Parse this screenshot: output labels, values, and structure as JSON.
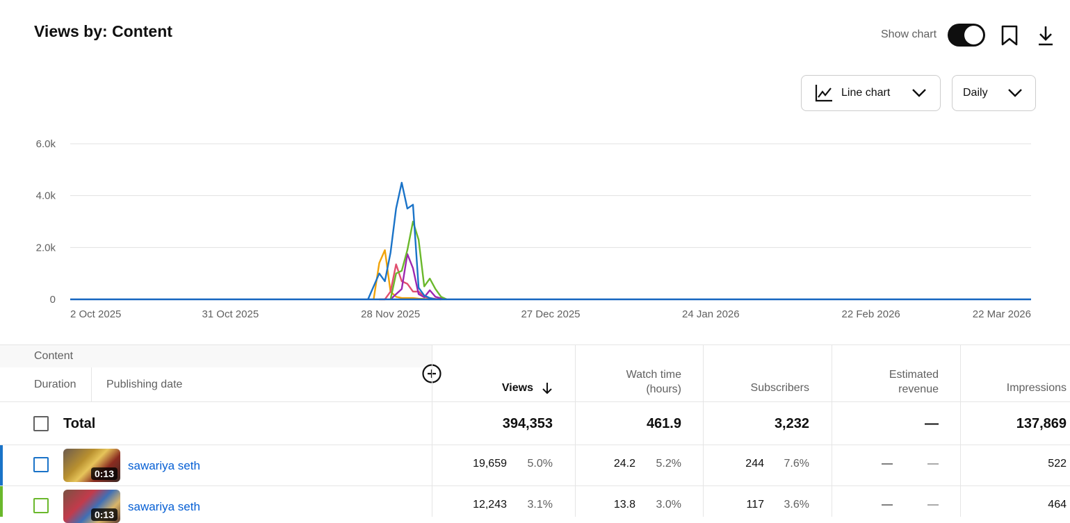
{
  "header": {
    "title": "Views by: Content",
    "show_chart_label": "Show chart",
    "show_chart_on": true
  },
  "controls": {
    "chart_type": "Line chart",
    "interval": "Daily"
  },
  "chart_data": {
    "type": "line",
    "x_ticks": [
      "2 Oct 2025",
      "31 Oct 2025",
      "28 Nov 2025",
      "27 Dec 2025",
      "24 Jan 2026",
      "22 Feb 2026",
      "22 Mar 2026"
    ],
    "y_ticks": [
      "6.0k",
      "4.0k",
      "2.0k",
      "0"
    ],
    "ylim": [
      0,
      6000
    ],
    "x_start": "2025-10-02",
    "x_end": "2026-03-22",
    "grid": true,
    "series": [
      {
        "color": "#f0a30a",
        "x": [
          "2025-11-25",
          "2025-11-26",
          "2025-11-27",
          "2025-11-28",
          "2025-11-29",
          "2025-11-30",
          "2025-12-01",
          "2025-12-02",
          "2025-12-03",
          "2025-12-04",
          "2025-12-05"
        ],
        "y": [
          0,
          1400,
          1900,
          300,
          100,
          50,
          50,
          50,
          30,
          20,
          0
        ]
      },
      {
        "color": "#e04e6e",
        "x": [
          "2025-11-26",
          "2025-11-27",
          "2025-11-28",
          "2025-11-29",
          "2025-11-30",
          "2025-12-01",
          "2025-12-02",
          "2025-12-03",
          "2025-12-04",
          "2025-12-05",
          "2025-12-06",
          "2025-12-07"
        ],
        "y": [
          0,
          0,
          300,
          1350,
          700,
          600,
          300,
          300,
          100,
          50,
          20,
          0
        ]
      },
      {
        "color": "#9c27b0",
        "x": [
          "2025-11-28",
          "2025-11-29",
          "2025-11-30",
          "2025-12-01",
          "2025-12-02",
          "2025-12-03",
          "2025-12-04",
          "2025-12-05",
          "2025-12-06",
          "2025-12-07",
          "2025-12-08"
        ],
        "y": [
          0,
          200,
          400,
          1750,
          1200,
          200,
          80,
          350,
          100,
          40,
          0
        ]
      },
      {
        "color": "#6ab82b",
        "x": [
          "2025-11-28",
          "2025-11-29",
          "2025-11-30",
          "2025-12-01",
          "2025-12-02",
          "2025-12-03",
          "2025-12-04",
          "2025-12-05",
          "2025-12-06",
          "2025-12-07",
          "2025-12-08"
        ],
        "y": [
          0,
          1000,
          1100,
          1900,
          3000,
          2300,
          500,
          800,
          400,
          100,
          0
        ]
      },
      {
        "color": "#1a73c8",
        "x": [
          "2025-11-24",
          "2025-11-25",
          "2025-11-26",
          "2025-11-27",
          "2025-11-28",
          "2025-11-29",
          "2025-11-30",
          "2025-12-01",
          "2025-12-02",
          "2025-12-03",
          "2025-12-04",
          "2025-12-05",
          "2025-12-06"
        ],
        "y": [
          0,
          500,
          1000,
          700,
          1800,
          3500,
          4500,
          3500,
          3650,
          450,
          150,
          50,
          0
        ]
      },
      {
        "color": "#1565c0",
        "x": [
          "2025-10-02",
          "2026-03-22"
        ],
        "y": [
          0,
          0
        ]
      }
    ]
  },
  "table": {
    "header": {
      "content": "Content",
      "duration": "Duration",
      "publishing_date": "Publishing date",
      "views": "Views",
      "watch_time": [
        "Watch time",
        "(hours)"
      ],
      "subscribers": "Subscribers",
      "revenue": [
        "Estimated",
        "revenue"
      ],
      "impressions": "Impressions"
    },
    "total": {
      "label": "Total",
      "views": "394,353",
      "watch_time": "461.9",
      "subscribers": "3,232",
      "revenue": "—",
      "impressions": "137,869"
    },
    "rows": [
      {
        "color": "#1a73c8",
        "duration": "0:13",
        "title": "sawariya seth",
        "views": "19,659",
        "views_pct": "5.0%",
        "watch": "24.2",
        "watch_pct": "5.2%",
        "subs": "244",
        "subs_pct": "7.6%",
        "revenue": "—",
        "revenue_pct": "—",
        "impressions": "522"
      },
      {
        "color": "#6ab82b",
        "duration": "0:13",
        "title": "sawariya seth",
        "views": "12,243",
        "views_pct": "3.1%",
        "watch": "13.8",
        "watch_pct": "3.0%",
        "subs": "117",
        "subs_pct": "3.6%",
        "revenue": "—",
        "revenue_pct": "—",
        "impressions": "464"
      }
    ]
  }
}
